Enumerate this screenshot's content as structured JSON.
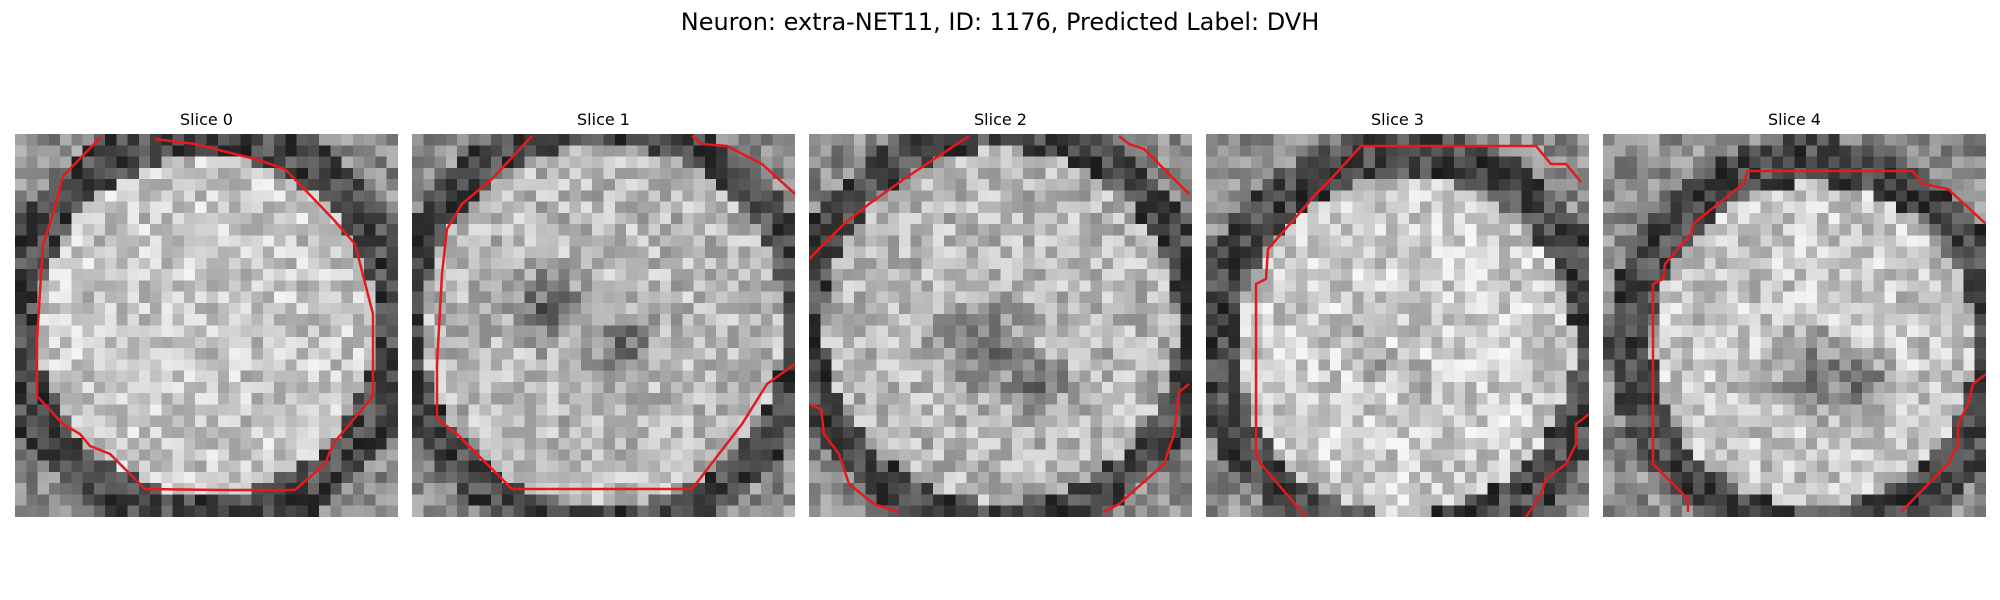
{
  "figure": {
    "title": "Neuron: extra-NET11, ID: 1176, Predicted Label: DVH"
  },
  "colors": {
    "contour": "#e41a1c",
    "image_colormap": "gray"
  },
  "slices": [
    {
      "title": "Slice 0"
    },
    {
      "title": "Slice 1"
    },
    {
      "title": "Slice 2"
    },
    {
      "title": "Slice 3"
    },
    {
      "title": "Slice 4"
    }
  ]
}
